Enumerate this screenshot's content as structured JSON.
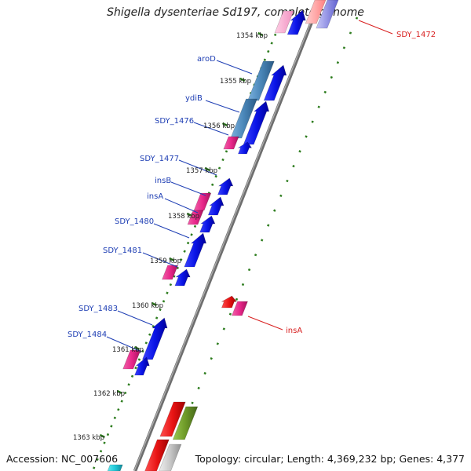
{
  "title": "Shigella dysenteriae Sd197, complete genome",
  "accession_text": "Accession: NC_007606",
  "topology_text": "Topology: circular; Length: 4,369,232 bp; Genes: 4,377",
  "scale_labels": [
    "1354 kbp",
    "1355 kbp",
    "1356 kbp",
    "1357 kbp",
    "1358 kbp",
    "1359 kbp",
    "1360 kbp",
    "1361 kbp",
    "1362 kbp",
    "1363 kbp"
  ],
  "gene_labels_left": [
    "aroD",
    "ydiB",
    "SDY_1476",
    "SDY_1477",
    "insB",
    "insA",
    "SDY_1480",
    "SDY_1481",
    "SDY_1483",
    "SDY_1484"
  ],
  "gene_labels_right": [
    "SDY_1472",
    "insA"
  ],
  "colors": {
    "backbone": "#808080",
    "tick": "#2e7d1f",
    "cds_blue": "#0a14e6",
    "cds_steel": "#4a86b8",
    "cds_pink": "#e8288a",
    "cds_red": "#e81414",
    "cds_olive": "#6e9a28",
    "cds_grey": "#c8c8c8",
    "cds_cyan": "#20c8d8",
    "label_blue": "#1f3fb4",
    "label_red": "#d82020"
  }
}
